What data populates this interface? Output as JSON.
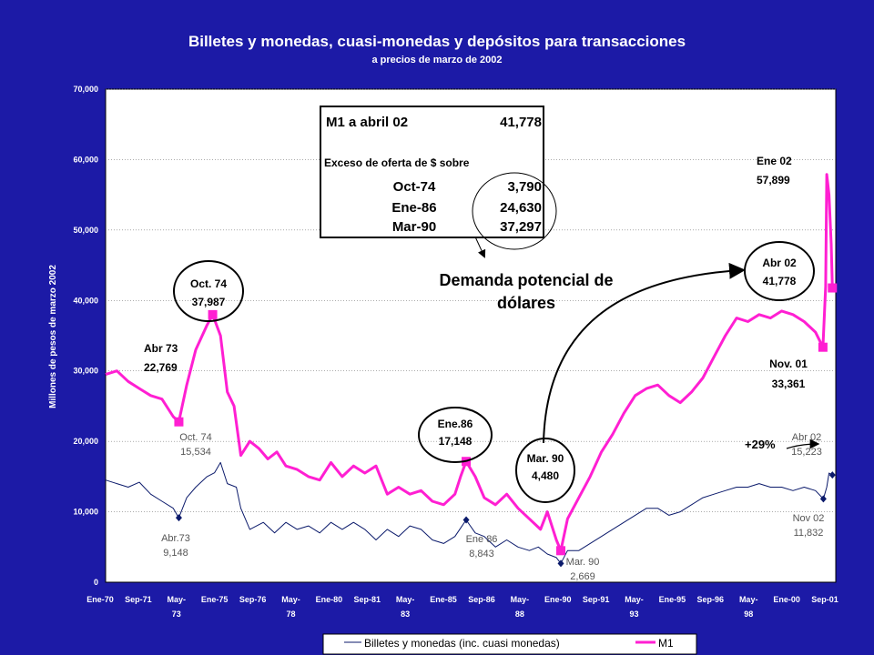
{
  "chart_data": {
    "type": "line",
    "title": "Billetes y monedas, cuasi-monedas y depósitos para transacciones",
    "subtitle": "a precios de marzo de 2002",
    "ylabel": "Millones de pesos de marzo 2002",
    "xlabel": "",
    "ylim": [
      0,
      70000
    ],
    "yticks": [
      0,
      10000,
      20000,
      30000,
      40000,
      50000,
      60000,
      70000
    ],
    "ytick_labels": [
      "0",
      "10,000",
      "20,000",
      "30,000",
      "40,000",
      "50,000",
      "60,000",
      "70,000"
    ],
    "grid": "horizontal",
    "legend_position": "bottom",
    "x_tick_labels": [
      [
        "Ene-70"
      ],
      [
        "Sep-71"
      ],
      [
        "May-",
        "73"
      ],
      [
        "Ene-75"
      ],
      [
        "Sep-76"
      ],
      [
        "May-",
        "78"
      ],
      [
        "Ene-80"
      ],
      [
        "Sep-81"
      ],
      [
        "May-",
        "83"
      ],
      [
        "Ene-85"
      ],
      [
        "Sep-86"
      ],
      [
        "May-",
        "88"
      ],
      [
        "Ene-90"
      ],
      [
        "Sep-91"
      ],
      [
        "May-",
        "93"
      ],
      [
        "Ene-95"
      ],
      [
        "Sep-96"
      ],
      [
        "May-",
        "98"
      ],
      [
        "Ene-00"
      ],
      [
        "Sep-01"
      ]
    ],
    "series": [
      {
        "name": "Billetes y monedas (inc. cuasi monedas)",
        "color": "#0b1a6b",
        "points": [
          [
            1970.0,
            14500
          ],
          [
            1970.5,
            14000
          ],
          [
            1971.0,
            13500
          ],
          [
            1971.5,
            14200
          ],
          [
            1972.0,
            12500
          ],
          [
            1972.5,
            11500
          ],
          [
            1973.0,
            10500
          ],
          [
            1973.25,
            9148
          ],
          [
            1973.6,
            12000
          ],
          [
            1974.0,
            13500
          ],
          [
            1974.5,
            15000
          ],
          [
            1974.83,
            15534
          ],
          [
            1975.1,
            17000
          ],
          [
            1975.4,
            14000
          ],
          [
            1975.8,
            13500
          ],
          [
            1976.0,
            10500
          ],
          [
            1976.4,
            7500
          ],
          [
            1977.0,
            8500
          ],
          [
            1977.5,
            7000
          ],
          [
            1978.0,
            8500
          ],
          [
            1978.5,
            7500
          ],
          [
            1979.0,
            8000
          ],
          [
            1979.5,
            7000
          ],
          [
            1980.0,
            8500
          ],
          [
            1980.5,
            7500
          ],
          [
            1981.0,
            8500
          ],
          [
            1981.5,
            7500
          ],
          [
            1982.0,
            6000
          ],
          [
            1982.5,
            7500
          ],
          [
            1983.0,
            6500
          ],
          [
            1983.5,
            8000
          ],
          [
            1984.0,
            7500
          ],
          [
            1984.5,
            6000
          ],
          [
            1985.0,
            5500
          ],
          [
            1985.5,
            6500
          ],
          [
            1986.0,
            8843
          ],
          [
            1986.4,
            7000
          ],
          [
            1986.8,
            6500
          ],
          [
            1987.3,
            5000
          ],
          [
            1987.8,
            6000
          ],
          [
            1988.3,
            5000
          ],
          [
            1988.8,
            4500
          ],
          [
            1989.2,
            5000
          ],
          [
            1989.6,
            4000
          ],
          [
            1990.0,
            3500
          ],
          [
            1990.2,
            2669
          ],
          [
            1990.5,
            4500
          ],
          [
            1991.0,
            4500
          ],
          [
            1991.5,
            5500
          ],
          [
            1992.0,
            6500
          ],
          [
            1992.5,
            7500
          ],
          [
            1993.0,
            8500
          ],
          [
            1993.5,
            9500
          ],
          [
            1994.0,
            10500
          ],
          [
            1994.5,
            10500
          ],
          [
            1995.0,
            9500
          ],
          [
            1995.5,
            10000
          ],
          [
            1996.0,
            11000
          ],
          [
            1996.5,
            12000
          ],
          [
            1997.0,
            12500
          ],
          [
            1997.5,
            13000
          ],
          [
            1998.0,
            13500
          ],
          [
            1998.5,
            13500
          ],
          [
            1999.0,
            14000
          ],
          [
            1999.5,
            13500
          ],
          [
            2000.0,
            13500
          ],
          [
            2000.5,
            13000
          ],
          [
            2001.0,
            13500
          ],
          [
            2001.5,
            13000
          ],
          [
            2001.85,
            11832
          ],
          [
            2002.0,
            13500
          ],
          [
            2002.1,
            15500
          ],
          [
            2002.25,
            15223
          ]
        ]
      },
      {
        "name": "M1",
        "color": "#ff1fd2",
        "points": [
          [
            1970.0,
            29500
          ],
          [
            1970.5,
            30000
          ],
          [
            1971.0,
            28500
          ],
          [
            1971.5,
            27500
          ],
          [
            1972.0,
            26500
          ],
          [
            1972.5,
            26000
          ],
          [
            1973.0,
            23500
          ],
          [
            1973.25,
            22769
          ],
          [
            1973.6,
            28000
          ],
          [
            1974.0,
            33000
          ],
          [
            1974.5,
            36500
          ],
          [
            1974.75,
            37987
          ],
          [
            1975.1,
            35000
          ],
          [
            1975.4,
            27000
          ],
          [
            1975.7,
            25000
          ],
          [
            1976.0,
            18000
          ],
          [
            1976.4,
            20000
          ],
          [
            1976.8,
            19000
          ],
          [
            1977.2,
            17500
          ],
          [
            1977.6,
            18500
          ],
          [
            1978.0,
            16500
          ],
          [
            1978.5,
            16000
          ],
          [
            1979.0,
            15000
          ],
          [
            1979.5,
            14500
          ],
          [
            1980.0,
            17000
          ],
          [
            1980.5,
            15000
          ],
          [
            1981.0,
            16500
          ],
          [
            1981.5,
            15500
          ],
          [
            1982.0,
            16500
          ],
          [
            1982.5,
            12500
          ],
          [
            1983.0,
            13500
          ],
          [
            1983.5,
            12500
          ],
          [
            1984.0,
            13000
          ],
          [
            1984.5,
            11500
          ],
          [
            1985.0,
            11000
          ],
          [
            1985.5,
            12500
          ],
          [
            1985.75,
            15000
          ],
          [
            1986.0,
            17148
          ],
          [
            1986.4,
            15000
          ],
          [
            1986.8,
            12000
          ],
          [
            1987.3,
            11000
          ],
          [
            1987.8,
            12500
          ],
          [
            1988.3,
            10500
          ],
          [
            1988.8,
            9000
          ],
          [
            1989.3,
            7500
          ],
          [
            1989.6,
            10000
          ],
          [
            1990.0,
            6000
          ],
          [
            1990.2,
            4480
          ],
          [
            1990.5,
            9000
          ],
          [
            1991.0,
            12000
          ],
          [
            1991.5,
            15000
          ],
          [
            1992.0,
            18500
          ],
          [
            1992.5,
            21000
          ],
          [
            1993.0,
            24000
          ],
          [
            1993.5,
            26500
          ],
          [
            1994.0,
            27500
          ],
          [
            1994.5,
            28000
          ],
          [
            1995.0,
            26500
          ],
          [
            1995.5,
            25500
          ],
          [
            1996.0,
            27000
          ],
          [
            1996.5,
            29000
          ],
          [
            1997.0,
            32000
          ],
          [
            1997.5,
            35000
          ],
          [
            1998.0,
            37500
          ],
          [
            1998.5,
            37000
          ],
          [
            1999.0,
            38000
          ],
          [
            1999.5,
            37500
          ],
          [
            2000.0,
            38500
          ],
          [
            2000.5,
            38000
          ],
          [
            2001.0,
            37000
          ],
          [
            2001.5,
            35500
          ],
          [
            2001.83,
            33361
          ],
          [
            2001.95,
            42000
          ],
          [
            2002.0,
            57899
          ],
          [
            2002.1,
            55000
          ],
          [
            2002.2,
            48000
          ],
          [
            2002.25,
            41778
          ]
        ]
      }
    ],
    "annotations": [
      {
        "lines": [
          "Abr 73",
          "22,769"
        ],
        "series": "M1"
      },
      {
        "lines": [
          "Oct. 74",
          "37,987"
        ],
        "series": "M1",
        "circled": true
      },
      {
        "lines": [
          "Ene.86",
          "17,148"
        ],
        "series": "M1",
        "circled": true
      },
      {
        "lines": [
          "Mar. 90",
          "4,480"
        ],
        "series": "M1",
        "circled": true
      },
      {
        "lines": [
          "Abr 02",
          "41,778"
        ],
        "series": "M1",
        "circled": true
      },
      {
        "lines": [
          "Ene 02",
          "57,899"
        ],
        "series": "M1"
      },
      {
        "lines": [
          "Nov. 01",
          "33,361"
        ],
        "series": "M1"
      },
      {
        "lines": [
          "Oct. 74",
          "15,534"
        ],
        "series": "Billetes"
      },
      {
        "lines": [
          "Abr.73",
          "9,148"
        ],
        "series": "Billetes"
      },
      {
        "lines": [
          "Ene 86",
          "8,843"
        ],
        "series": "Billetes"
      },
      {
        "lines": [
          "Mar. 90",
          "2,669"
        ],
        "series": "Billetes"
      },
      {
        "lines": [
          "Abr 02",
          "15,223"
        ],
        "series": "Billetes"
      },
      {
        "lines": [
          "Nov 02",
          "11,832"
        ],
        "series": "Billetes"
      },
      {
        "lines": [
          "+29%"
        ]
      },
      {
        "lines": [
          "Demanda potencial de",
          "dólares"
        ]
      }
    ],
    "info_box": {
      "header_label": "M1 a abril 02",
      "header_value": "41,778",
      "note": "Exceso de oferta de $ sobre",
      "rows": [
        {
          "label": "Oct-74",
          "value": "3,790"
        },
        {
          "label": "Ene-86",
          "value": "24,630"
        },
        {
          "label": "Mar-90",
          "value": "37,297"
        }
      ]
    }
  }
}
